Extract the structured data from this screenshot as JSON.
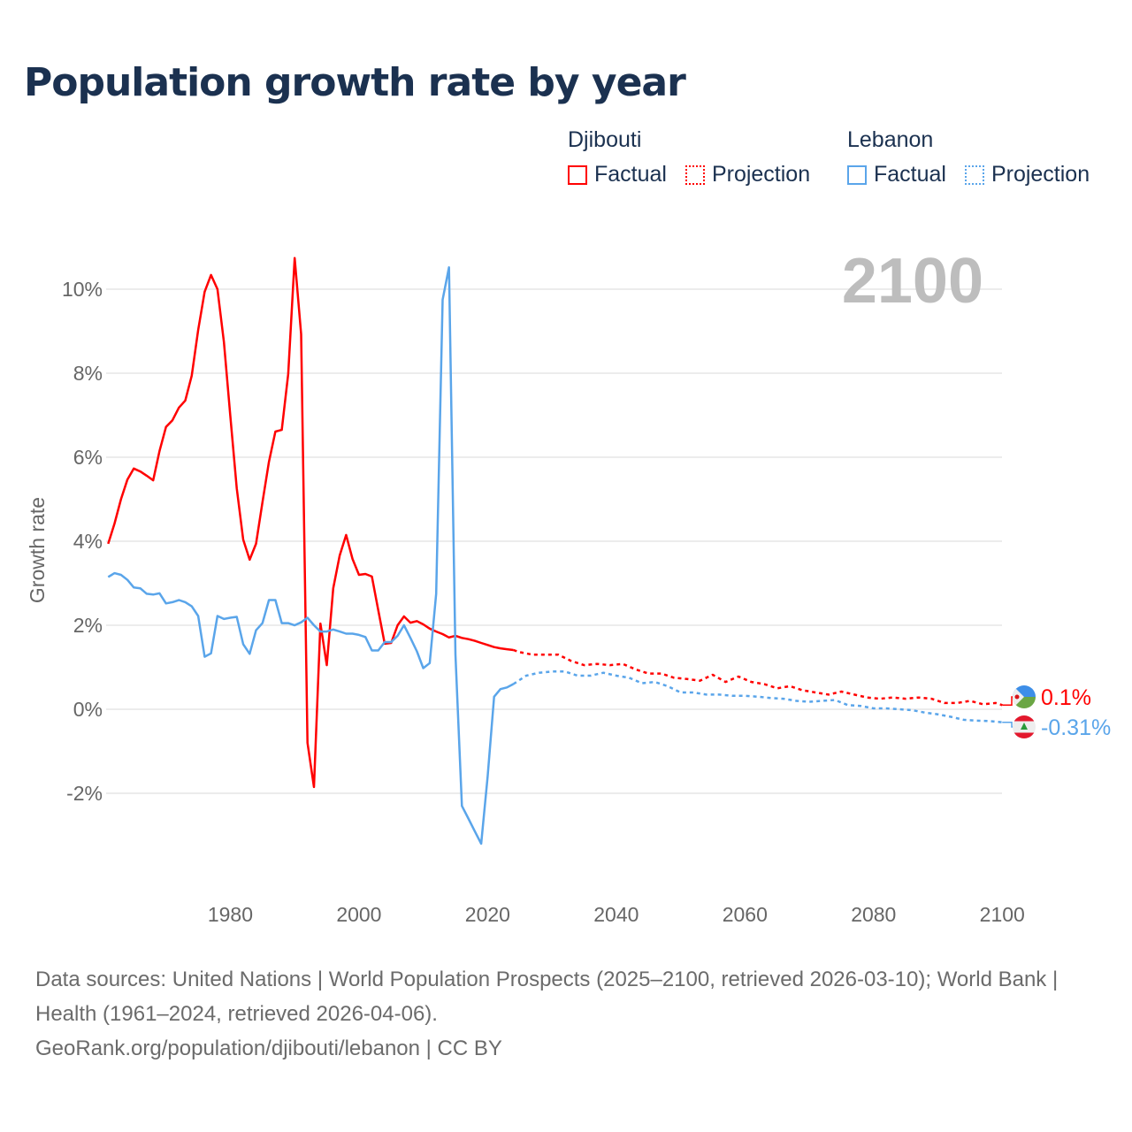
{
  "chart_data": {
    "type": "line",
    "title": "Population growth rate by year",
    "ylabel": "Growth rate",
    "xlabel": "",
    "xlim": [
      1961,
      2100
    ],
    "ylim": [
      -4,
      11
    ],
    "x_ticks": [
      1980,
      2000,
      2020,
      2040,
      2060,
      2080,
      2100
    ],
    "y_ticks": [
      -2,
      0,
      2,
      4,
      6,
      8,
      10
    ],
    "y_tick_labels": [
      "-2%",
      "0%",
      "2%",
      "4%",
      "6%",
      "8%",
      "10%"
    ],
    "grid": true,
    "year_display": "2100",
    "legend": {
      "groups": [
        {
          "name": "Djibouti",
          "factual": "Factual",
          "projection": "Projection",
          "color": "#ff0000"
        },
        {
          "name": "Lebanon",
          "factual": "Factual",
          "projection": "Projection",
          "color": "#5aa5ea"
        }
      ],
      "placement": "top-right"
    },
    "series": [
      {
        "name": "Djibouti Factual",
        "color": "#ff0000",
        "style": "solid",
        "x_start": 1961,
        "values": [
          3.94,
          4.42,
          5.0,
          5.47,
          5.73,
          5.66,
          5.56,
          5.45,
          6.15,
          6.72,
          6.88,
          7.18,
          7.35,
          7.94,
          9.03,
          9.94,
          10.34,
          10.0,
          8.74,
          6.99,
          5.26,
          4.04,
          3.56,
          3.94,
          4.93,
          5.89,
          6.61,
          6.65,
          7.98,
          10.74,
          8.93,
          -0.8,
          -1.85,
          2.04,
          1.05,
          2.88,
          3.66,
          4.15,
          3.58,
          3.2,
          3.22,
          3.16,
          2.36,
          1.56,
          1.58,
          2.0,
          2.21,
          2.06,
          2.1,
          2.02,
          1.92,
          1.85,
          1.79,
          1.71,
          1.75,
          1.7,
          1.67,
          1.63,
          1.58,
          1.53,
          1.48,
          1.45,
          1.43,
          1.41
        ]
      },
      {
        "name": "Djibouti Projection",
        "color": "#ff0000",
        "style": "dotted",
        "x": [
          2024,
          2025,
          2027,
          2029,
          2031,
          2033,
          2035,
          2037,
          2039,
          2041,
          2043,
          2045,
          2047,
          2049,
          2051,
          2053,
          2055,
          2057,
          2059,
          2061,
          2063,
          2065,
          2067,
          2069,
          2071,
          2073,
          2075,
          2077,
          2079,
          2081,
          2083,
          2085,
          2087,
          2089,
          2091,
          2093,
          2095,
          2097,
          2099,
          2100
        ],
        "values": [
          1.41,
          1.36,
          1.3,
          1.3,
          1.3,
          1.15,
          1.05,
          1.08,
          1.05,
          1.08,
          0.95,
          0.85,
          0.85,
          0.75,
          0.72,
          0.68,
          0.82,
          0.65,
          0.78,
          0.65,
          0.6,
          0.5,
          0.55,
          0.45,
          0.4,
          0.35,
          0.42,
          0.35,
          0.28,
          0.25,
          0.28,
          0.25,
          0.28,
          0.25,
          0.15,
          0.15,
          0.2,
          0.12,
          0.15,
          0.1
        ]
      },
      {
        "name": "Lebanon Factual",
        "color": "#5aa5ea",
        "style": "solid",
        "x_start": 1961,
        "values": [
          3.15,
          3.24,
          3.2,
          3.08,
          2.9,
          2.88,
          2.75,
          2.73,
          2.76,
          2.52,
          2.55,
          2.6,
          2.55,
          2.45,
          2.22,
          1.25,
          1.33,
          2.22,
          2.15,
          2.18,
          2.2,
          1.55,
          1.32,
          1.88,
          2.05,
          2.6,
          2.6,
          2.05,
          2.05,
          2.0,
          2.07,
          2.18,
          2.0,
          1.85,
          1.85,
          1.9,
          1.85,
          1.8,
          1.8,
          1.77,
          1.72,
          1.4,
          1.4,
          1.6,
          1.6,
          1.75,
          2.0,
          1.7,
          1.38,
          0.98,
          1.1,
          2.75,
          9.75,
          10.52,
          1.3,
          -2.3,
          -2.6,
          -2.9,
          -3.2,
          -1.6,
          0.3,
          0.48,
          0.52,
          0.6
        ]
      },
      {
        "name": "Lebanon Projection",
        "color": "#5aa5ea",
        "style": "dotted",
        "x": [
          2024,
          2026,
          2028,
          2030,
          2032,
          2034,
          2036,
          2038,
          2040,
          2042,
          2044,
          2046,
          2048,
          2050,
          2052,
          2054,
          2056,
          2058,
          2060,
          2062,
          2064,
          2066,
          2068,
          2070,
          2072,
          2074,
          2076,
          2078,
          2080,
          2082,
          2084,
          2086,
          2088,
          2090,
          2092,
          2094,
          2096,
          2098,
          2100
        ],
        "values": [
          0.6,
          0.8,
          0.87,
          0.9,
          0.9,
          0.8,
          0.8,
          0.87,
          0.8,
          0.75,
          0.62,
          0.65,
          0.55,
          0.4,
          0.4,
          0.35,
          0.35,
          0.32,
          0.32,
          0.3,
          0.27,
          0.25,
          0.2,
          0.18,
          0.2,
          0.22,
          0.1,
          0.08,
          0.02,
          0.02,
          0.0,
          -0.02,
          -0.08,
          -0.12,
          -0.18,
          -0.25,
          -0.27,
          -0.28,
          -0.31
        ]
      }
    ],
    "end_labels": [
      {
        "country": "Djibouti",
        "value": 0.1,
        "label": "0.1%",
        "color": "#ff0000"
      },
      {
        "country": "Lebanon",
        "value": -0.31,
        "label": "-0.31%",
        "color": "#5aa5ea"
      }
    ]
  },
  "footer": {
    "sources": "Data sources: United Nations | World Population Prospects (2025–2100, retrieved 2026-03-10); World Bank | Health (1961–2024, retrieved 2026-04-06).",
    "credit": "GeoRank.org/population/djibouti/lebanon | CC BY"
  }
}
